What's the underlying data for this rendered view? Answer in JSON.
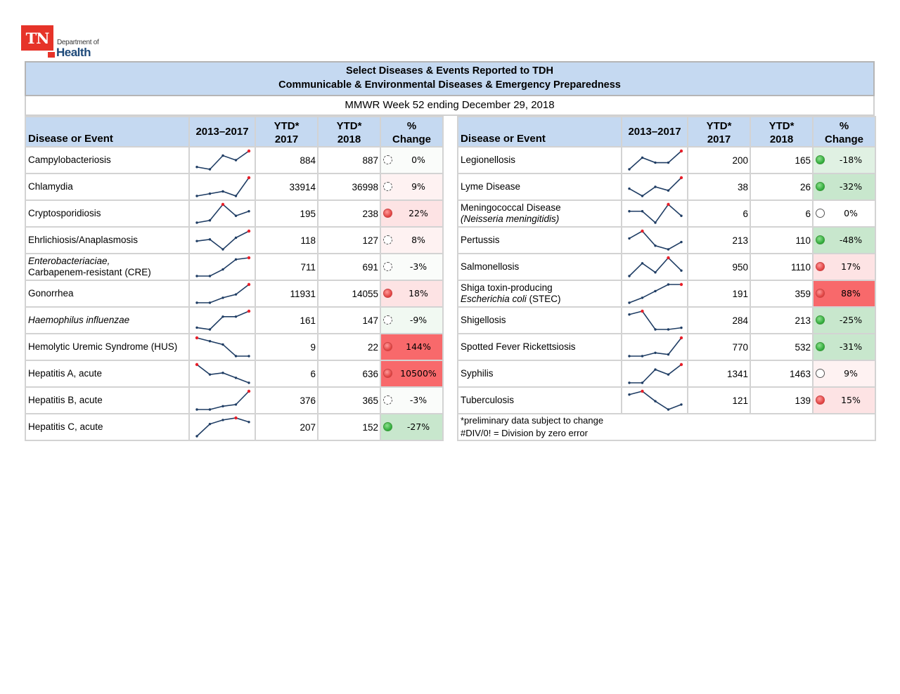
{
  "logo": {
    "abbrev": "TN",
    "dept": "Department of",
    "health": "Health"
  },
  "header": {
    "title_line1": "Select Diseases & Events Reported to TDH",
    "title_line2": "Communicable & Environmental Diseases & Emergency Preparedness",
    "week": "MMWR Week 52 ending December 29, 2018"
  },
  "columns": {
    "disease": "Disease or Event",
    "trend": "2013–2017",
    "ytd2017_a": "YTD*",
    "ytd2017_b": "2017",
    "ytd2018_a": "YTD*",
    "ytd2018_b": "2018",
    "change_a": "%",
    "change_b": "Change"
  },
  "colors": {
    "header_bg": "#c5d9f1",
    "spark_line": "#1f3d64",
    "spark_last": "#e8202a"
  },
  "left_rows": [
    {
      "name": "Campylobacteriosis",
      "trend": [
        2,
        1,
        7,
        5,
        9
      ],
      "ytd2017": "884",
      "ytd2018": "887",
      "change": "0%",
      "status": "flat-dash",
      "shade": "none"
    },
    {
      "name": "Chlamydia",
      "trend": [
        1,
        2,
        3,
        1,
        9
      ],
      "ytd2017": "33914",
      "ytd2018": "36998",
      "change": "9%",
      "status": "flat-dash",
      "shade": "red-faint"
    },
    {
      "name": "Cryptosporidiosis",
      "trend": [
        1,
        2,
        9,
        4,
        6
      ],
      "ytd2017": "195",
      "ytd2018": "238",
      "change": "22%",
      "status": "up",
      "shade": "red-light"
    },
    {
      "name": "Ehrlichiosis/Anaplasmosis",
      "trend": [
        6,
        7,
        1,
        8,
        12
      ],
      "ytd2017": "118",
      "ytd2018": "127",
      "change": "8%",
      "status": "flat-dash",
      "shade": "red-faint"
    },
    {
      "name": "Enterobacteriaciae,",
      "name2": "Carbapenem-resistant (CRE)",
      "italic1": true,
      "trend": [
        1,
        1,
        5,
        11,
        12
      ],
      "ytd2017": "711",
      "ytd2018": "691",
      "change": "-3%",
      "status": "flat-dash",
      "shade": "none"
    },
    {
      "name": "Gonorrhea",
      "trend": [
        1,
        1,
        4,
        6,
        12
      ],
      "ytd2017": "11931",
      "ytd2018": "14055",
      "change": "18%",
      "status": "up",
      "shade": "red-light"
    },
    {
      "name": "Haemophilus influenzae",
      "italic": true,
      "trend": [
        2,
        1,
        8,
        8,
        11
      ],
      "ytd2017": "161",
      "ytd2018": "147",
      "change": "-9%",
      "status": "flat-dash",
      "shade": "grn-faint"
    },
    {
      "name": "Hemolytic Uremic Syndrome (HUS)",
      "trend": [
        12,
        10,
        8,
        1,
        1
      ],
      "ytd2017": "9",
      "ytd2018": "22",
      "change": "144%",
      "status": "up",
      "shade": "red-strong"
    },
    {
      "name": "Hepatitis A, acute",
      "trend": [
        12,
        6,
        7,
        4,
        1
      ],
      "ytd2017": "6",
      "ytd2018": "636",
      "change": "10500%",
      "status": "up",
      "shade": "red-strong"
    },
    {
      "name": "Hepatitis B, acute",
      "trend": [
        1,
        1,
        3,
        4,
        12
      ],
      "ytd2017": "376",
      "ytd2018": "365",
      "change": "-3%",
      "status": "flat-dash",
      "shade": "none"
    },
    {
      "name": "Hepatitis C, acute",
      "trend": [
        1,
        7,
        9,
        10,
        8
      ],
      "ytd2017": "207",
      "ytd2018": "152",
      "change": "-27%",
      "status": "down",
      "shade": "grn-mid"
    }
  ],
  "right_rows": [
    {
      "name": "Legionellosis",
      "trend": [
        1,
        8,
        5,
        5,
        12
      ],
      "ytd2017": "200",
      "ytd2018": "165",
      "change": "-18%",
      "status": "down",
      "shade": "grn-light"
    },
    {
      "name": "Lyme Disease",
      "trend": [
        5,
        1,
        6,
        4,
        11
      ],
      "ytd2017": "38",
      "ytd2018": "26",
      "change": "-32%",
      "status": "down",
      "shade": "grn-mid"
    },
    {
      "name": "Meningococcal Disease",
      "name2": "(Neisseria meningitidis)",
      "italic2": true,
      "trend": [
        6,
        6,
        1,
        9,
        4
      ],
      "ytd2017": "6",
      "ytd2018": "6",
      "change": "0%",
      "status": "flat",
      "shade": "white"
    },
    {
      "name": "Pertussis",
      "trend": [
        8,
        12,
        4,
        2,
        6
      ],
      "ytd2017": "213",
      "ytd2018": "110",
      "change": "-48%",
      "status": "down",
      "shade": "grn-mid"
    },
    {
      "name": "Salmonellosis",
      "trend": [
        1,
        8,
        3,
        11,
        4
      ],
      "ytd2017": "950",
      "ytd2018": "1110",
      "change": "17%",
      "status": "up",
      "shade": "red-light"
    },
    {
      "name": "Shiga toxin-producing",
      "name2": "Escherichia coli (STEC)",
      "italic2part": true,
      "trend": [
        1,
        4,
        8,
        12,
        12
      ],
      "ytd2017": "191",
      "ytd2018": "359",
      "change": "88%",
      "status": "up",
      "shade": "red-strong"
    },
    {
      "name": "Shigellosis",
      "trend": [
        10,
        12,
        1,
        1,
        2
      ],
      "ytd2017": "284",
      "ytd2018": "213",
      "change": "-25%",
      "status": "down",
      "shade": "grn-mid"
    },
    {
      "name": "Spotted Fever Rickettsiosis",
      "trend": [
        1,
        1,
        3,
        2,
        12
      ],
      "ytd2017": "770",
      "ytd2018": "532",
      "change": "-31%",
      "status": "down",
      "shade": "grn-mid"
    },
    {
      "name": "Syphilis",
      "trend": [
        1,
        1,
        9,
        6,
        12
      ],
      "ytd2017": "1341",
      "ytd2018": "1463",
      "change": "9%",
      "status": "flat",
      "shade": "red-faint"
    },
    {
      "name": "Tuberculosis",
      "trend": [
        10,
        12,
        6,
        1,
        4
      ],
      "ytd2017": "121",
      "ytd2018": "139",
      "change": "15%",
      "status": "up",
      "shade": "red-light"
    }
  ],
  "notes": {
    "line1": "*preliminary data subject to change",
    "line2": "#DIV/0! = Division by zero error"
  }
}
